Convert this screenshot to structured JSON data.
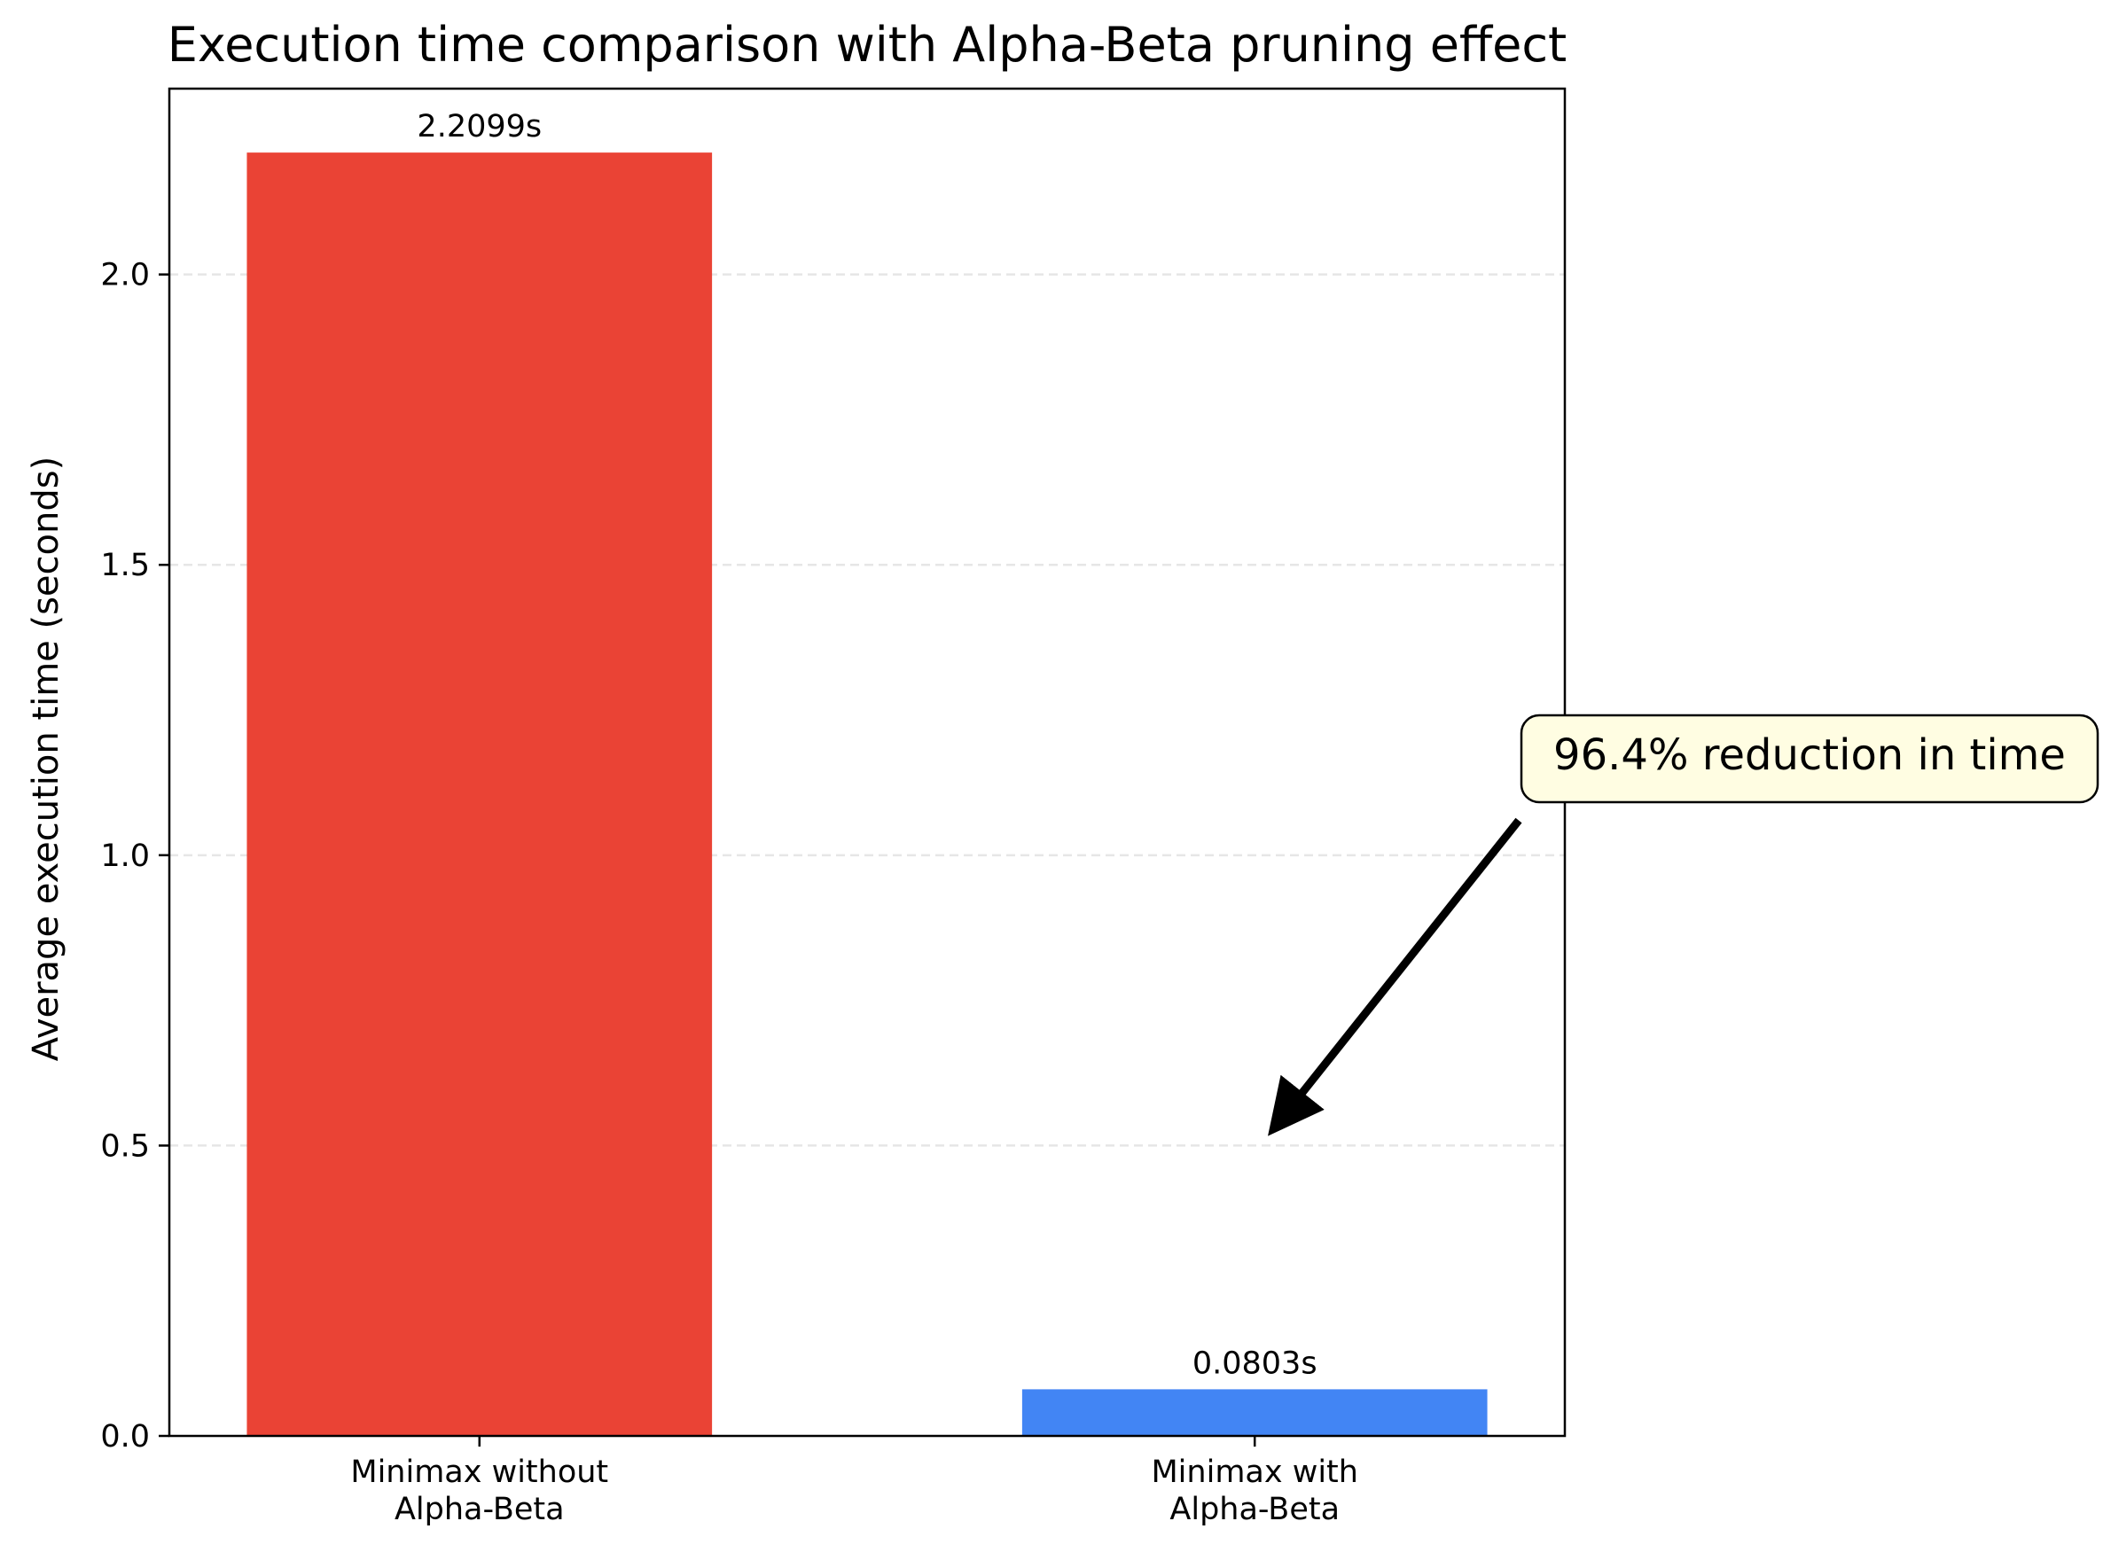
{
  "chart_data": {
    "type": "bar",
    "title": "Execution time comparison with Alpha-Beta pruning effect",
    "xlabel": "",
    "ylabel": "Average execution time (seconds)",
    "categories": [
      [
        "Minimax without",
        "Alpha-Beta"
      ],
      [
        "Minimax with",
        "Alpha-Beta"
      ]
    ],
    "values": [
      2.2099,
      0.0803
    ],
    "value_labels": [
      "2.2099s",
      "0.0803s"
    ],
    "bar_colors": [
      "#EA4335",
      "#4285F4"
    ],
    "ylim": [
      0,
      2.32
    ],
    "yticks": [
      0.0,
      0.5,
      1.0,
      1.5,
      2.0
    ],
    "ytick_labels": [
      "0.0",
      "0.5",
      "1.0",
      "1.5",
      "2.0"
    ],
    "grid": {
      "axis": "y",
      "style": "dashed",
      "color": "#e6e6e6"
    },
    "annotation": {
      "text": "96.4% reduction in time",
      "arrow_target": {
        "category_index": 1,
        "y": 0.48
      },
      "arrow_tail": {
        "y": 1.06
      },
      "box_color": "#fffde2"
    }
  }
}
